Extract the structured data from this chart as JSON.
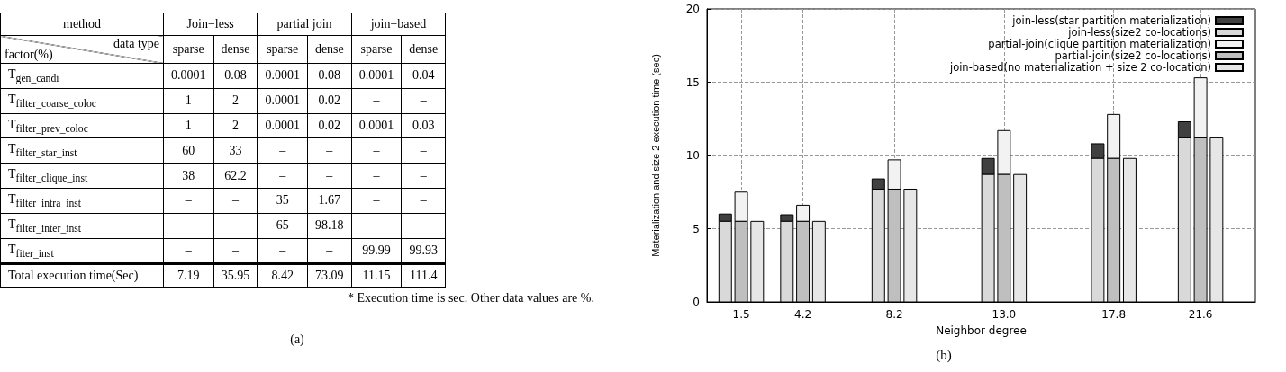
{
  "chart_data": [
    {
      "type": "other",
      "title": "method",
      "xlabel": "data type",
      "ylabel": "factor(%)",
      "categories": [
        "sparse",
        "dense",
        "sparse",
        "dense",
        "sparse",
        "dense"
      ],
      "y_categories": [
        "T$_{gen_candi}$",
        "T$_{filter_coarse_coloc}$",
        "T$_{filter_prev_coloc}$",
        "T$_{filter_star_inst}$",
        "T$_{filter_clique_inst}$",
        "T$_{filter_intra_inst}$",
        "T$_{filter_inter_inst}$",
        "T$_{fiter_inst}$",
        "Total execution time(Sec)"
      ],
      "cell_labels": [
        [
          "0.0001",
          "0.08",
          "0.0001",
          "0.08",
          "0.0001",
          "0.04"
        ],
        [
          "1",
          "2",
          "0.0001",
          "0.02",
          "–",
          "–"
        ],
        [
          "1",
          "2",
          "0.0001",
          "0.02",
          "0.0001",
          "0.03"
        ],
        [
          "60",
          "33",
          "–",
          "–",
          "–",
          "–"
        ],
        [
          "38",
          "62.2",
          "–",
          "–",
          "–",
          "–"
        ],
        [
          "–",
          "–",
          "35",
          "1.67",
          "–",
          "–"
        ],
        [
          "–",
          "–",
          "65",
          "98.18",
          "–",
          "–"
        ],
        [
          "–",
          "–",
          "–",
          "–",
          "99.99",
          "99.93"
        ],
        [
          "7.19",
          "35.95",
          "8.42",
          "73.09",
          "11.15",
          "111.4"
        ]
      ],
      "annotations": [
        "Join−less",
        "partial join",
        "join−based",
        "* Execution time is sec. Other data values are %.",
        "(a)"
      ]
    },
    {
      "type": "bar",
      "xlabel": "Neighbor degree",
      "ylabel": "Materialization and size 2 execution time (sec)",
      "x": [
        1.5,
        4.2,
        8.2,
        13.0,
        17.8,
        21.6
      ],
      "series": [
        {
          "name": "join-less(star partition materialization)",
          "color": "#404040",
          "x": [
            0.8,
            3.5,
            7.5,
            12.3,
            17.1,
            20.9
          ],
          "base": [
            5.5,
            5.5,
            7.7,
            8.7,
            9.8,
            11.2
          ],
          "values": [
            0.5,
            0.45,
            0.7,
            1.1,
            1.0,
            1.1
          ]
        },
        {
          "name": "join-less(size2 co-locations)",
          "color": "#d9d9d9",
          "x": [
            0.8,
            3.5,
            7.5,
            12.3,
            17.1,
            20.9
          ],
          "values": [
            5.5,
            5.5,
            7.7,
            8.7,
            9.8,
            11.2
          ]
        },
        {
          "name": "partial-join(clique partition materialization)",
          "color": "#f2f2f2",
          "base": [
            5.5,
            5.5,
            7.7,
            8.7,
            9.8,
            11.2
          ],
          "values": [
            2.0,
            1.1,
            2.0,
            3.0,
            3.0,
            4.1
          ]
        },
        {
          "name": "partial-join(size2 co-locations)",
          "color": "#bfbfbf",
          "values": [
            5.5,
            5.5,
            7.7,
            8.7,
            9.8,
            11.2
          ]
        },
        {
          "name": "join-based(no materialization + size 2 co-location)",
          "color": "#e6e6e6",
          "x": [
            2.2,
            4.9,
            8.9,
            13.7,
            18.5,
            22.3
          ],
          "values": [
            5.5,
            5.5,
            7.7,
            8.7,
            9.8,
            11.2
          ]
        }
      ],
      "xlim": [
        0,
        24
      ],
      "xticks": [
        1.5,
        4.2,
        8.2,
        {
          "value": 13,
          "label": "13.0"
        },
        17.8,
        21.6
      ],
      "ylim": [
        0,
        20
      ],
      "yticks": [
        0,
        5,
        10,
        15,
        20
      ],
      "grid": true,
      "legend": "top right",
      "annotations": [
        "(b)"
      ]
    }
  ]
}
